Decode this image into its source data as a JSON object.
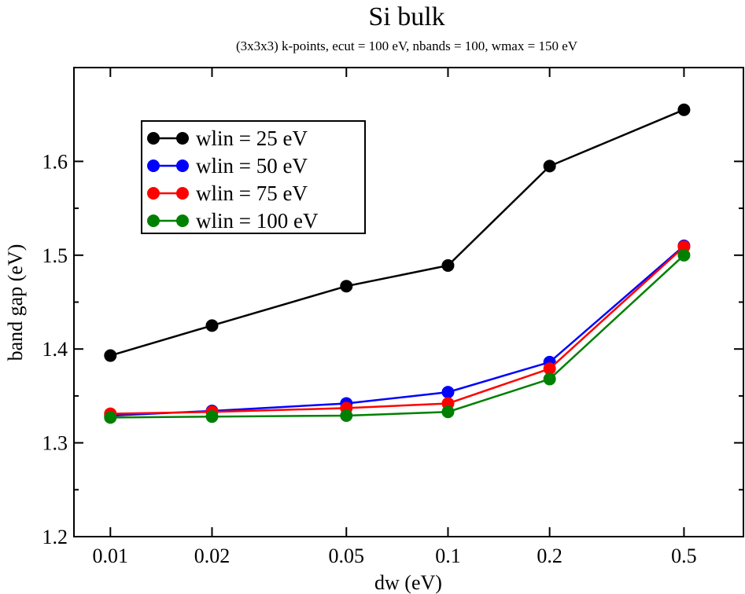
{
  "chart_data": {
    "type": "line",
    "title": "Si bulk",
    "subtitle": "(3x3x3) k-points, ecut = 100 eV, nbands = 100, wmax = 150 eV",
    "xlabel": "dw (eV)",
    "ylabel": "band gap (eV)",
    "x_scale": "log",
    "xlim": [
      0.0078,
      0.75
    ],
    "ylim": [
      1.2,
      1.7
    ],
    "x_ticks": [
      0.01,
      0.02,
      0.05,
      0.1,
      0.2,
      0.5
    ],
    "x_tick_labels": [
      "0.01",
      "0.02",
      "0.05",
      "0.1",
      "0.2",
      "0.5"
    ],
    "y_ticks": [
      1.2,
      1.3,
      1.4,
      1.5,
      1.6
    ],
    "y_tick_labels": [
      "1.2",
      "1.3",
      "1.4",
      "1.5",
      "1.6"
    ],
    "legend_position": "top-left",
    "grid": false,
    "x": [
      0.01,
      0.02,
      0.05,
      0.1,
      0.2,
      0.5
    ],
    "series": [
      {
        "name": "wlin = 25 eV",
        "color": "#000000",
        "values": [
          1.393,
          1.425,
          1.467,
          1.489,
          1.595,
          1.655
        ]
      },
      {
        "name": "wlin = 50 eV",
        "color": "#0000ff",
        "values": [
          1.329,
          1.334,
          1.342,
          1.354,
          1.386,
          1.51
        ]
      },
      {
        "name": "wlin = 75 eV",
        "color": "#ff0000",
        "values": [
          1.331,
          1.333,
          1.337,
          1.342,
          1.379,
          1.509
        ]
      },
      {
        "name": "wlin = 100 eV",
        "color": "#008000",
        "values": [
          1.327,
          1.328,
          1.329,
          1.333,
          1.368,
          1.5
        ]
      }
    ]
  }
}
